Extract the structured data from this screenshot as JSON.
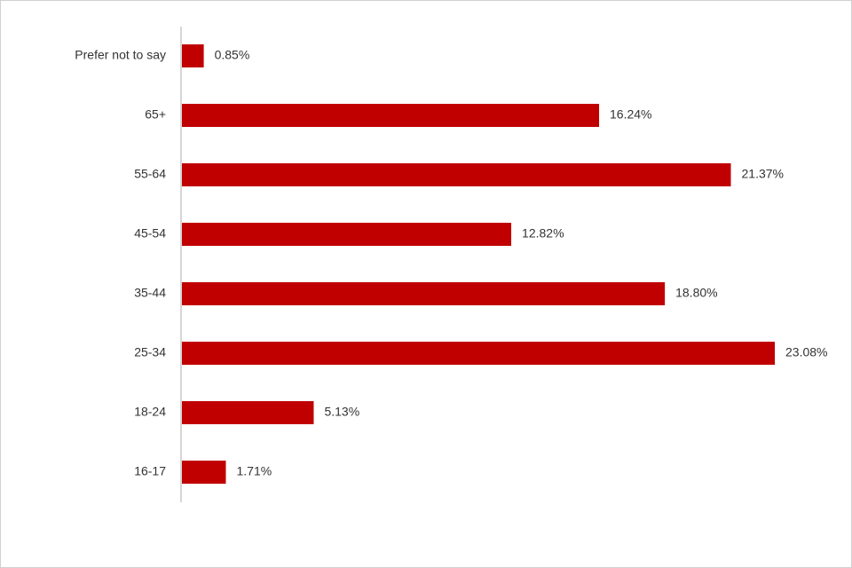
{
  "chart_data": {
    "type": "bar",
    "orientation": "horizontal",
    "categories": [
      "Prefer not to say",
      "65+",
      "55-64",
      "45-54",
      "35-44",
      "25-34",
      "18-24",
      "16-17"
    ],
    "values": [
      0.85,
      16.24,
      21.37,
      12.82,
      18.8,
      23.08,
      5.13,
      1.71
    ],
    "value_labels": [
      "0.85%",
      "16.24%",
      "21.37%",
      "12.82%",
      "18.80%",
      "23.08%",
      "5.13%",
      "1.71%"
    ],
    "color": "#c00000"
  }
}
